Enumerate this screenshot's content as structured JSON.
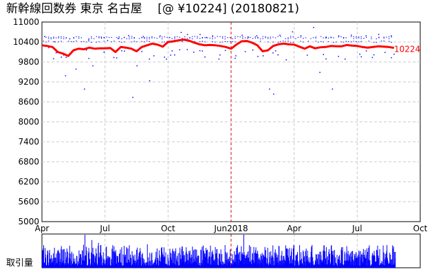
{
  "title": "新幹線回数券 東京 名古屋　 [@ ¥10224] (20180821)",
  "volume_label": "取引量",
  "chart_data": [
    {
      "type": "line",
      "title": "新幹線回数券 東京 名古屋　 [@ ¥10224] (20180821)",
      "ylim": [
        5000,
        11000
      ],
      "yticks": [
        5000,
        5600,
        6200,
        6800,
        7400,
        8000,
        8600,
        9200,
        9800,
        10400,
        11000
      ],
      "x_tick_labels": [
        "Apr",
        "Jul",
        "Oct",
        "Jun2018",
        "Apr",
        "Jul",
        "Oct"
      ],
      "x_tick_positions": [
        0,
        3,
        6,
        9,
        12,
        15,
        18
      ],
      "x_range_months": [
        0,
        18
      ],
      "year_divider_at": 9,
      "grid": true,
      "last_value": 10224,
      "last_label": "10224",
      "series": [
        {
          "x": [
            0,
            0.25,
            0.5,
            0.75,
            1.0,
            1.25,
            1.5,
            1.75,
            2.0,
            2.25,
            2.5,
            2.75,
            3.0,
            3.25,
            3.5,
            3.75,
            4.0,
            4.25,
            4.5,
            4.75,
            5.0,
            5.25,
            5.5,
            5.75,
            6.0,
            6.25,
            6.5,
            6.75,
            7.0,
            7.25,
            7.5,
            7.75,
            8.0,
            8.25,
            8.5,
            8.75,
            9.0,
            9.25,
            9.5,
            9.75,
            10.0,
            10.25,
            10.5,
            10.75,
            11.0,
            11.25,
            11.5,
            11.75,
            12.0,
            12.25,
            12.5,
            12.75,
            13.0,
            13.25,
            13.5,
            13.75,
            14.0,
            14.25,
            14.5,
            14.75,
            15.0,
            15.25,
            15.5,
            15.75,
            16.0,
            16.25,
            16.5,
            16.75
          ],
          "values": [
            10300,
            10280,
            10250,
            10100,
            10050,
            9980,
            10150,
            10200,
            10180,
            10230,
            10200,
            10210,
            10210,
            10220,
            10100,
            10250,
            10230,
            10200,
            10120,
            10250,
            10300,
            10350,
            10320,
            10260,
            10400,
            10420,
            10450,
            10470,
            10440,
            10380,
            10330,
            10300,
            10310,
            10300,
            10280,
            10250,
            10200,
            10320,
            10420,
            10430,
            10380,
            10300,
            10120,
            10150,
            10280,
            10330,
            10350,
            10330,
            10320,
            10260,
            10200,
            10270,
            10210,
            10240,
            10250,
            10280,
            10270,
            10270,
            10310,
            10290,
            10280,
            10250,
            10230,
            10250,
            10270,
            10260,
            10250,
            10224
          ]
        }
      ],
      "scatter_points": [
        [
          0.1,
          10580
        ],
        [
          0.3,
          10250
        ],
        [
          0.6,
          10420
        ],
        [
          0.9,
          9960
        ],
        [
          1.1,
          9400
        ],
        [
          1.3,
          10510
        ],
        [
          1.6,
          9600
        ],
        [
          2.0,
          9000
        ],
        [
          2.2,
          10480
        ],
        [
          2.4,
          9700
        ],
        [
          2.8,
          10560
        ],
        [
          3.1,
          10460
        ],
        [
          3.4,
          9950
        ],
        [
          3.6,
          10520
        ],
        [
          3.9,
          10140
        ],
        [
          4.1,
          10610
        ],
        [
          4.3,
          8750
        ],
        [
          4.5,
          9700
        ],
        [
          4.8,
          10580
        ],
        [
          5.1,
          9250
        ],
        [
          5.3,
          10000
        ],
        [
          5.6,
          10600
        ],
        [
          5.9,
          9900
        ],
        [
          6.1,
          10020
        ],
        [
          6.3,
          10560
        ],
        [
          6.6,
          10700
        ],
        [
          6.9,
          10640
        ],
        [
          7.2,
          10110
        ],
        [
          7.5,
          10640
        ],
        [
          7.8,
          10550
        ],
        [
          8.1,
          10600
        ],
        [
          8.4,
          9900
        ],
        [
          8.7,
          10160
        ],
        [
          9.2,
          10000
        ],
        [
          9.5,
          10620
        ],
        [
          9.8,
          10560
        ],
        [
          10.2,
          10600
        ],
        [
          10.5,
          10000
        ],
        [
          10.8,
          9000
        ],
        [
          11.0,
          8850
        ],
        [
          11.3,
          10620
        ],
        [
          11.6,
          9880
        ],
        [
          11.9,
          10720
        ],
        [
          12.3,
          10600
        ],
        [
          12.6,
          10020
        ],
        [
          12.9,
          10850
        ],
        [
          13.2,
          9500
        ],
        [
          13.5,
          10560
        ],
        [
          13.8,
          9000
        ],
        [
          14.1,
          10600
        ],
        [
          14.4,
          9900
        ],
        [
          14.7,
          10620
        ],
        [
          15.1,
          10050
        ],
        [
          15.4,
          10600
        ],
        [
          15.7,
          9950
        ],
        [
          16.0,
          10640
        ],
        [
          16.3,
          10100
        ],
        [
          16.6,
          10600
        ]
      ],
      "volume": {
        "x_step": 0.0165,
        "seed": 7
      }
    }
  ]
}
